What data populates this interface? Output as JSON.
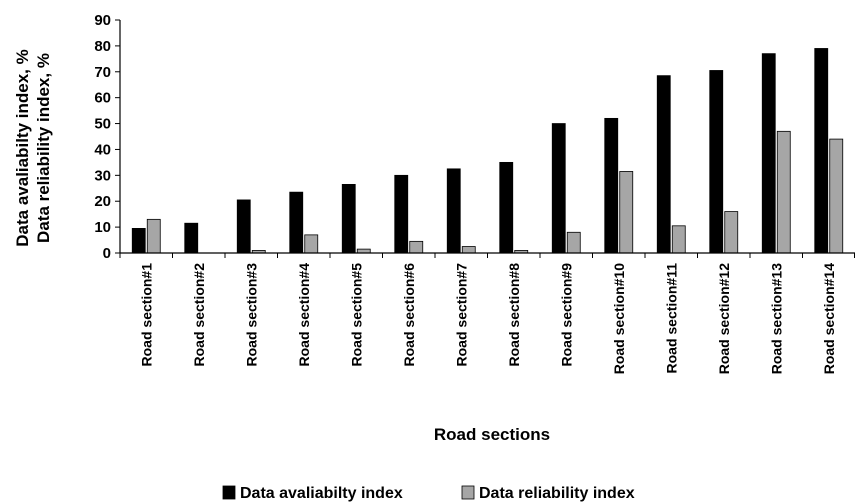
{
  "chart_data": {
    "type": "bar",
    "title": "",
    "xlabel": "Road sections",
    "ylabel_lines": [
      "Data avaliabilty index, %",
      "Data reliability index, %"
    ],
    "ylim": [
      0,
      90
    ],
    "yticks": [
      0,
      10,
      20,
      30,
      40,
      50,
      60,
      70,
      80,
      90
    ],
    "grid": false,
    "legend_position": "bottom",
    "categories": [
      "Road section#1",
      "Road section#2",
      "Road section#3",
      "Road section#4",
      "Road section#5",
      "Road section#6",
      "Road section#7",
      "Road section#8",
      "Road section#9",
      "Road section#10",
      "Road section#11",
      "Road section#12",
      "Road section#13",
      "Road section#14"
    ],
    "series": [
      {
        "name": "Data avaliabilty index",
        "color": "#000000",
        "values": [
          9.5,
          11.5,
          20.5,
          23.5,
          26.5,
          30,
          32.5,
          35,
          50,
          52,
          68.5,
          70.5,
          77,
          79
        ]
      },
      {
        "name": "Data reliability index",
        "color": "#a6a6a6",
        "values": [
          13,
          0,
          1,
          7,
          1.5,
          4.5,
          2.5,
          1,
          8,
          31.5,
          10.5,
          16,
          47,
          44
        ]
      }
    ]
  }
}
